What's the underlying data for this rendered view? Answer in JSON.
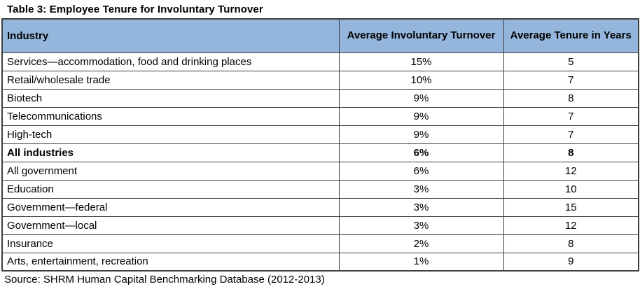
{
  "title": "Table 3: Employee Tenure for Involuntary Turnover",
  "source": "Source: SHRM Human Capital Benchmarking Database (2012-2013)",
  "colors": {
    "header_bg": "#95b6dc",
    "border": "#3f3f3f"
  },
  "table": {
    "columns": [
      "Industry",
      "Average Involuntary Turnover",
      "Average Tenure in Years"
    ],
    "rows": [
      {
        "industry": "Services—accommodation, food and drinking places",
        "turnover": "15%",
        "tenure": "5"
      },
      {
        "industry": "Retail/wholesale trade",
        "turnover": "10%",
        "tenure": "7"
      },
      {
        "industry": "Biotech",
        "turnover": "9%",
        "tenure": "8"
      },
      {
        "industry": "Telecommunications",
        "turnover": "9%",
        "tenure": "7"
      },
      {
        "industry": "High-tech",
        "turnover": "9%",
        "tenure": "7"
      },
      {
        "industry": "All industries",
        "turnover": "6%",
        "tenure": "8",
        "bold": true
      },
      {
        "industry": "All government",
        "turnover": "6%",
        "tenure": "12"
      },
      {
        "industry": "Education",
        "turnover": "3%",
        "tenure": "10"
      },
      {
        "industry": "Government—federal",
        "turnover": "3%",
        "tenure": "15"
      },
      {
        "industry": "Government—local",
        "turnover": "3%",
        "tenure": "12"
      },
      {
        "industry": "Insurance",
        "turnover": "2%",
        "tenure": "8"
      },
      {
        "industry": "Arts, entertainment, recreation",
        "turnover": "1%",
        "tenure": "9"
      }
    ]
  }
}
